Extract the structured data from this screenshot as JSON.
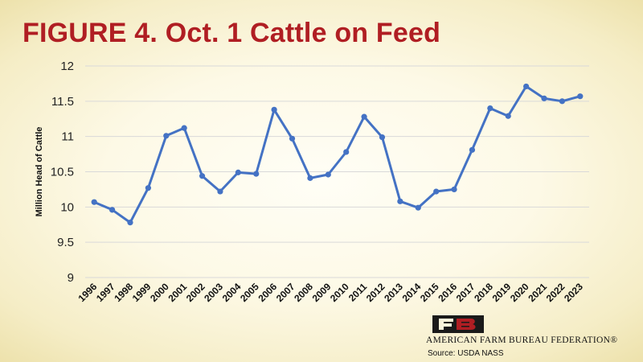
{
  "title": "FIGURE 4. Oct. 1 Cattle on Feed",
  "source": "Source: USDA NASS",
  "logo_text": "AMERICAN FARM BUREAU FEDERATION®",
  "colors": {
    "title": "#b01e23",
    "line": "#4472c4",
    "grid": "#d9d9d9"
  },
  "chart_data": {
    "type": "line",
    "title": "FIGURE 4. Oct. 1 Cattle on Feed",
    "xlabel": "",
    "ylabel": "Million Head of Cattle",
    "ylim": [
      9,
      12
    ],
    "yticks": [
      "9",
      "9.5",
      "10",
      "10.5",
      "11",
      "11.5",
      "12"
    ],
    "grid": true,
    "categories": [
      "1996",
      "1997",
      "1998",
      "1999",
      "2000",
      "2001",
      "2002",
      "2003",
      "2004",
      "2005",
      "2006",
      "2007",
      "2008",
      "2009",
      "2010",
      "2011",
      "2012",
      "2013",
      "2014",
      "2015",
      "2016",
      "2017",
      "2018",
      "2019",
      "2020",
      "2021",
      "2022",
      "2023"
    ],
    "series": [
      {
        "values": [
          10.07,
          9.96,
          9.78,
          10.27,
          11.01,
          11.12,
          10.44,
          10.22,
          10.49,
          10.47,
          11.38,
          10.97,
          10.41,
          10.46,
          10.78,
          11.28,
          10.99,
          10.08,
          9.99,
          10.22,
          10.25,
          10.81,
          11.4,
          11.29,
          11.71,
          11.54,
          11.5,
          11.57
        ]
      }
    ]
  }
}
